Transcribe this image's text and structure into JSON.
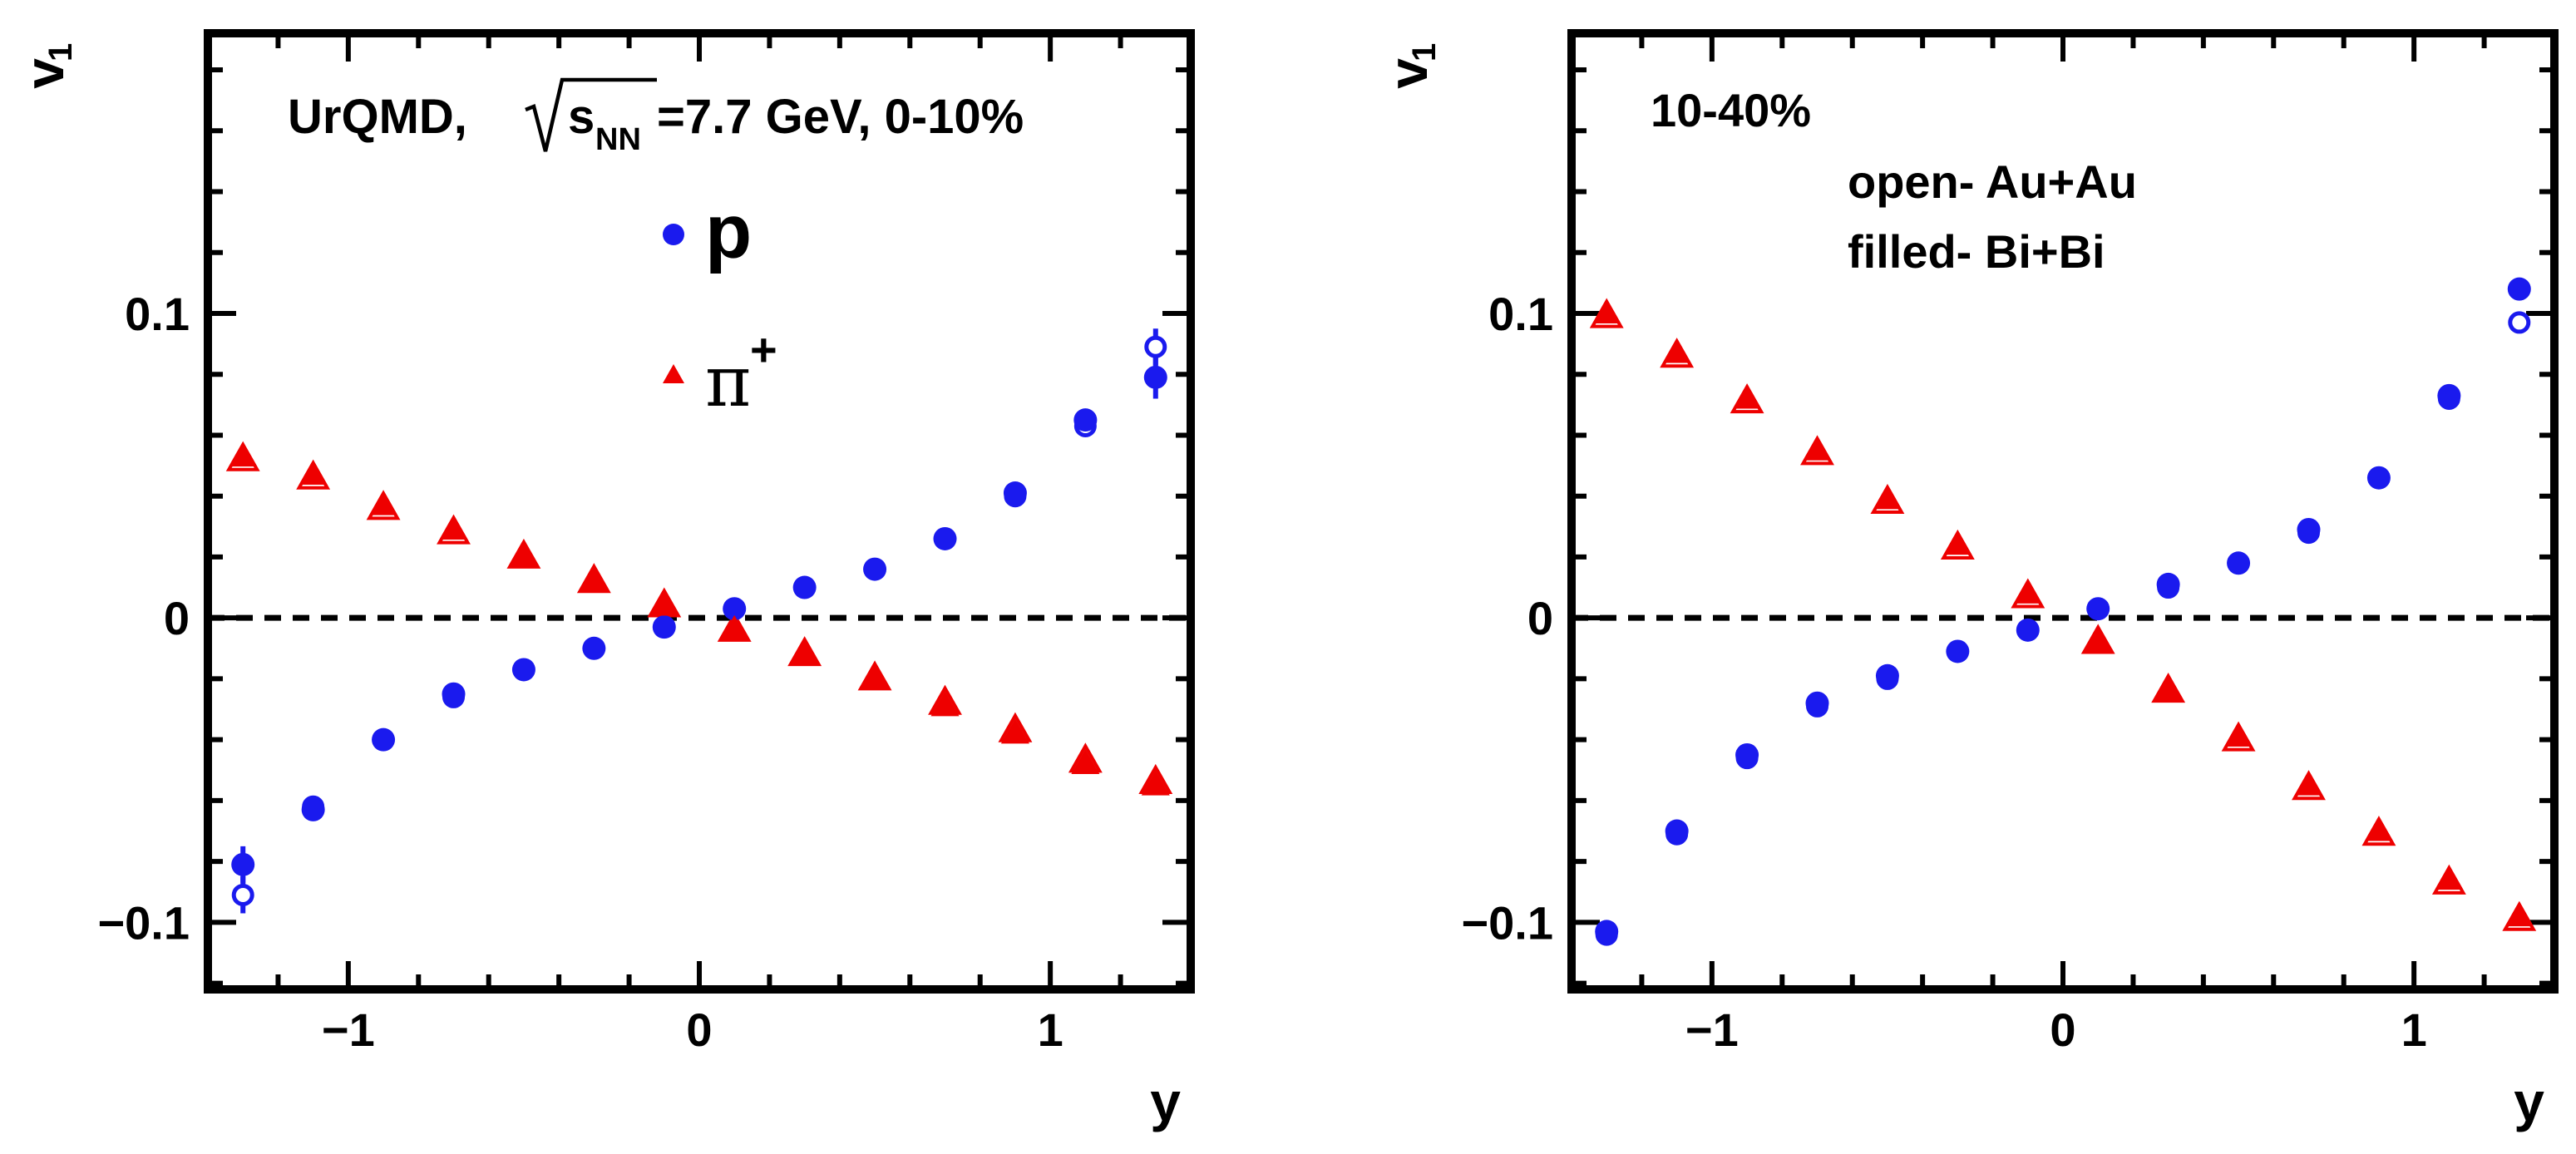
{
  "figure": {
    "colors": {
      "proton": "#1a1aee",
      "pion": "#ee0000",
      "axis": "#000000"
    },
    "panels_text": {
      "left": {
        "annotation_urqmd": "UrQMD,",
        "annotation_s": "s",
        "annotation_nn": "NN",
        "annotation_energy": "=7.7 GeV, 0-10%",
        "legend_p": "p",
        "legend_pi": "π",
        "legend_pi_sup": "+"
      },
      "right": {
        "centrality": "10-40%",
        "note_open": "open- Au+Au",
        "note_filled": "filled- Bi+Bi"
      }
    }
  },
  "chart_data": [
    {
      "type": "scatter",
      "panel": "left",
      "title": "",
      "annotation": "UrQMD, √sNN=7.7 GeV, 0-10%",
      "xlabel": "y",
      "ylabel": "v",
      "ylabel_sub": "1",
      "xlim": [
        -1.4,
        1.4
      ],
      "ylim": [
        -0.122,
        0.192
      ],
      "xticks": [
        -1,
        0,
        1
      ],
      "xtick_labels": [
        "−1",
        "0",
        "1"
      ],
      "yticks": [
        -0.1,
        0,
        0.1
      ],
      "ytick_labels": [
        "−0.1",
        "0",
        "0.1"
      ],
      "reference_line": 0,
      "legend": [
        "p",
        "π+"
      ],
      "series": [
        {
          "name": "p",
          "particle": "p",
          "system": "Au+Au",
          "marker": "open-circle",
          "color": "#1a1aee",
          "x": [
            -1.3,
            -1.1,
            -0.9,
            -0.7,
            -0.5,
            -0.3,
            -0.1,
            0.1,
            0.3,
            0.5,
            0.7,
            0.9,
            1.1,
            1.3
          ],
          "y": [
            -0.091,
            -0.062,
            -0.04,
            -0.026,
            -0.017,
            -0.01,
            -0.003,
            0.003,
            0.01,
            0.016,
            0.026,
            0.04,
            0.063,
            0.089
          ],
          "yerr": [
            0.006,
            0.002,
            0.001,
            0.001,
            0.001,
            0.001,
            0.001,
            0.001,
            0.001,
            0.001,
            0.001,
            0.001,
            0.002,
            0.006
          ]
        },
        {
          "name": "p",
          "particle": "p",
          "system": "Bi+Bi",
          "marker": "filled-circle",
          "color": "#1a1aee",
          "x": [
            -1.3,
            -1.1,
            -0.9,
            -0.7,
            -0.5,
            -0.3,
            -0.1,
            0.1,
            0.3,
            0.5,
            0.7,
            0.9,
            1.1,
            1.3
          ],
          "y": [
            -0.081,
            -0.063,
            -0.04,
            -0.025,
            -0.017,
            -0.01,
            -0.003,
            0.003,
            0.01,
            0.016,
            0.026,
            0.041,
            0.065,
            0.079
          ],
          "yerr": [
            0.006,
            0.002,
            0.001,
            0.001,
            0.001,
            0.001,
            0.001,
            0.001,
            0.001,
            0.001,
            0.001,
            0.001,
            0.002,
            0.007
          ]
        },
        {
          "name": "π+",
          "particle": "pi+",
          "system": "Au+Au",
          "marker": "open-triangle",
          "color": "#ee0000",
          "x": [
            -1.3,
            -1.1,
            -0.9,
            -0.7,
            -0.5,
            -0.3,
            -0.1,
            0.1,
            0.3,
            0.5,
            0.7,
            0.9,
            1.1,
            1.3
          ],
          "y": [
            0.052,
            0.046,
            0.036,
            0.028,
            0.02,
            0.012,
            0.004,
            -0.004,
            -0.012,
            -0.02,
            -0.028,
            -0.037,
            -0.047,
            -0.054
          ]
        },
        {
          "name": "π+",
          "particle": "pi+",
          "system": "Bi+Bi",
          "marker": "filled-triangle",
          "color": "#ee0000",
          "x": [
            -1.3,
            -1.1,
            -0.9,
            -0.7,
            -0.5,
            -0.3,
            -0.1,
            0.1,
            0.3,
            0.5,
            0.7,
            0.9,
            1.1,
            1.3
          ],
          "y": [
            0.053,
            0.047,
            0.037,
            0.029,
            0.02,
            0.012,
            0.004,
            -0.004,
            -0.012,
            -0.02,
            -0.029,
            -0.038,
            -0.048,
            -0.055
          ]
        }
      ]
    },
    {
      "type": "scatter",
      "panel": "right",
      "title": "",
      "annotation": "10-40%",
      "xlabel": "y",
      "ylabel": "v",
      "ylabel_sub": "1",
      "xlim": [
        -1.4,
        1.4
      ],
      "ylim": [
        -0.122,
        0.192
      ],
      "xticks": [
        -1,
        0,
        1
      ],
      "xtick_labels": [
        "−1",
        "0",
        "1"
      ],
      "yticks": [
        -0.1,
        0,
        0.1
      ],
      "ytick_labels": [
        "−0.1",
        "0",
        "0.1"
      ],
      "reference_line": 0,
      "notes": [
        "open- Au+Au",
        "filled- Bi+Bi"
      ],
      "series": [
        {
          "particle": "p",
          "system": "Au+Au",
          "marker": "open-circle",
          "color": "#1a1aee",
          "x": [
            -1.3,
            -1.1,
            -0.9,
            -0.7,
            -0.5,
            -0.3,
            -0.1,
            0.1,
            0.3,
            0.5,
            0.7,
            0.9,
            1.1,
            1.3
          ],
          "y": [
            -0.104,
            -0.071,
            -0.046,
            -0.029,
            -0.02,
            -0.011,
            -0.004,
            0.003,
            0.01,
            0.018,
            0.028,
            0.046,
            0.072,
            0.097
          ]
        },
        {
          "particle": "p",
          "system": "Bi+Bi",
          "marker": "filled-circle",
          "color": "#1a1aee",
          "x": [
            -1.3,
            -1.1,
            -0.9,
            -0.7,
            -0.5,
            -0.3,
            -0.1,
            0.1,
            0.3,
            0.5,
            0.7,
            0.9,
            1.1,
            1.3
          ],
          "y": [
            -0.103,
            -0.07,
            -0.045,
            -0.028,
            -0.019,
            -0.011,
            -0.004,
            0.003,
            0.011,
            0.018,
            0.029,
            0.046,
            0.073,
            0.108
          ]
        },
        {
          "particle": "pi+",
          "system": "Au+Au",
          "marker": "open-triangle",
          "color": "#ee0000",
          "x": [
            -1.3,
            -1.1,
            -0.9,
            -0.7,
            -0.5,
            -0.3,
            -0.1,
            0.1,
            0.3,
            0.5,
            0.7,
            0.9,
            1.1,
            1.3
          ],
          "y": [
            0.099,
            0.086,
            0.071,
            0.054,
            0.038,
            0.023,
            0.007,
            -0.008,
            -0.024,
            -0.04,
            -0.056,
            -0.071,
            -0.087,
            -0.099
          ]
        },
        {
          "particle": "pi+",
          "system": "Bi+Bi",
          "marker": "filled-triangle",
          "color": "#ee0000",
          "x": [
            -1.3,
            -1.1,
            -0.9,
            -0.7,
            -0.5,
            -0.3,
            -0.1,
            0.1,
            0.3,
            0.5,
            0.7,
            0.9,
            1.1,
            1.3
          ],
          "y": [
            0.1,
            0.087,
            0.072,
            0.055,
            0.039,
            0.024,
            0.008,
            -0.008,
            -0.024,
            -0.039,
            -0.055,
            -0.07,
            -0.086,
            -0.098
          ]
        }
      ]
    }
  ]
}
